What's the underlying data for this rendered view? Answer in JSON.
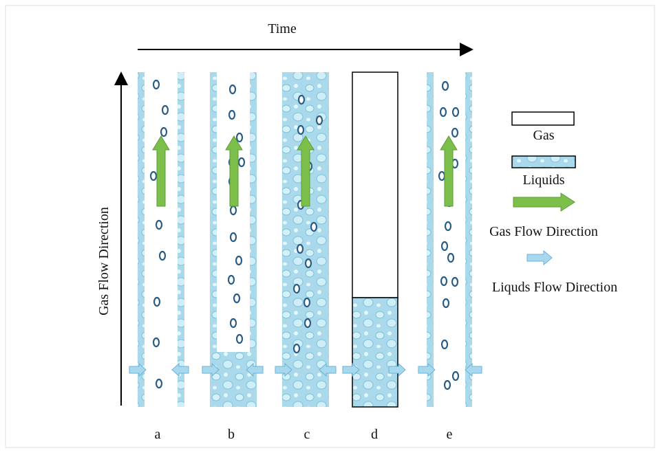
{
  "axes": {
    "time_label": "Time",
    "flow_label": "Gas Flow Direction"
  },
  "columns": [
    "a",
    "b",
    "c",
    "d",
    "e"
  ],
  "legend": [
    "Gas",
    "Liquids",
    "Gas Flow Direction",
    "Liquds Flow Direction"
  ]
}
